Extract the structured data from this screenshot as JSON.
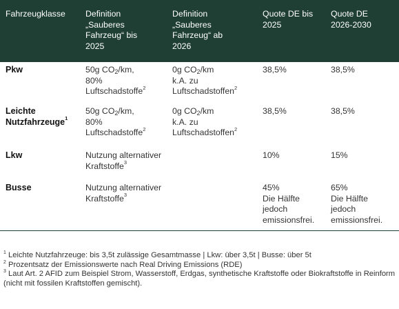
{
  "table": {
    "headers": [
      "Fahrzeugklasse",
      "Definition\n„Sauberes\nFahrzeug“ bis\n2025",
      "Definition\n„Sauberes\nFahrzeug“ ab\n2026",
      "Quote DE bis\n2025",
      "Quote DE\n2026-2030"
    ],
    "rows": [
      {
        "label": "Pkw",
        "label_sup": "",
        "def_2025": {
          "line1a": "50g CO",
          "line1sub": "2",
          "line1b": "/km,",
          "rest": "80%\nLuftschadstoffe",
          "sup": "2"
        },
        "def_2026": {
          "line1a": "0g CO",
          "line1sub": "2",
          "line1b": "/km",
          "rest": "k.A. zu\nLuftschadstoffen",
          "sup": "2"
        },
        "quote_2025": "38,5%",
        "quote_2030": "38,5%"
      },
      {
        "label": "Leichte\nNutzfahrzeuge",
        "label_sup": "1",
        "def_2025": {
          "line1a": "50g CO",
          "line1sub": "2",
          "line1b": "/km,",
          "rest": "80%\nLuftschadstoffe",
          "sup": "2"
        },
        "def_2026": {
          "line1a": "0g CO",
          "line1sub": "2",
          "line1b": "/km",
          "rest": "k.A. zu\nLuftschadstoffen",
          "sup": "2"
        },
        "quote_2025": "38,5%",
        "quote_2030": "38,5%"
      },
      {
        "label": "Lkw",
        "label_sup": "",
        "def_merged": {
          "text": "Nutzung alternativer\nKraftstoffe",
          "sup": "3"
        },
        "quote_2025": "10%",
        "quote_2030": "15%"
      },
      {
        "label": "Busse",
        "label_sup": "",
        "def_merged": {
          "text": "Nutzung alternativer\nKraftstoffe",
          "sup": "3"
        },
        "quote_2025": "45%\nDie Hälfte\njedoch\nemissionsfrei.",
        "quote_2030": "65%\nDie Hälfte\njedoch\nemissionsfrei."
      }
    ]
  },
  "footnotes": [
    {
      "num": "1",
      "text": " Leichte Nutzfahrzeuge: bis 3,5t zulässige Gesamtmasse | Lkw: über 3,5t | Busse: über 5t"
    },
    {
      "num": "2",
      "text": " Prozentsatz der Emissionswerte nach Real Driving Emissions (RDE)"
    },
    {
      "num": "3",
      "text": " Laut Art. 2 AFID zum Beispiel Strom, Wasserstoff, Erdgas, synthetische Kraftstoffe oder Biokraftstoffe in Reinform (nicht mit fossilen Kraftstoffen gemischt)."
    }
  ],
  "colors": {
    "header_bg": "#1f3f34",
    "header_text": "#ffffff",
    "body_text": "#333333"
  }
}
